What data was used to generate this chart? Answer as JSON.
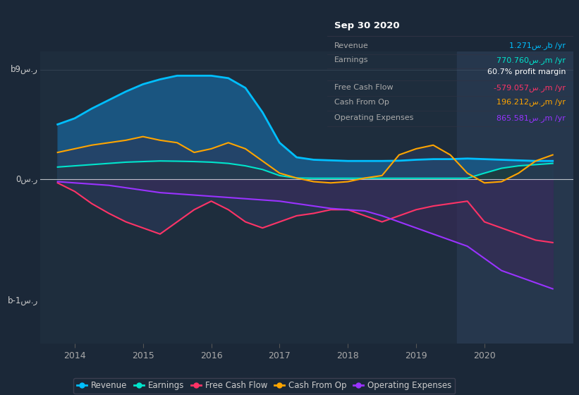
{
  "bg_color": "#1b2838",
  "plot_bg_color": "#1e2d3d",
  "highlight_bg": "#26374d",
  "ytick_labels": [
    "b9س.ر",
    "0س.ر",
    "b-1س.ر"
  ],
  "ytick_vals": [
    900000000.0,
    0,
    -1000000000.0
  ],
  "ylim": [
    -1350000000.0,
    1050000000.0
  ],
  "xlim": [
    2013.5,
    2021.3
  ],
  "xtick_vals": [
    2014,
    2015,
    2016,
    2017,
    2018,
    2019,
    2020
  ],
  "legend_labels": [
    "Revenue",
    "Earnings",
    "Free Cash Flow",
    "Cash From Op",
    "Operating Expenses"
  ],
  "revenue_color": "#00bfff",
  "earnings_color": "#00e5cc",
  "fcf_color": "#ff3366",
  "cashfromop_color": "#ffa500",
  "opex_color": "#9933ff",
  "revenue_fill_color": "#1a5580",
  "earnings_fill_color": "#1a4040",
  "x": [
    2013.75,
    2014.0,
    2014.25,
    2014.5,
    2014.75,
    2015.0,
    2015.25,
    2015.5,
    2015.75,
    2016.0,
    2016.25,
    2016.5,
    2016.75,
    2017.0,
    2017.25,
    2017.5,
    2017.75,
    2018.0,
    2018.25,
    2018.5,
    2018.75,
    2019.0,
    2019.25,
    2019.5,
    2019.75,
    2020.0,
    2020.25,
    2020.5,
    2020.75,
    2021.0
  ],
  "revenue": [
    450000000.0,
    500000000.0,
    580000000.0,
    650000000.0,
    720000000.0,
    780000000.0,
    820000000.0,
    850000000.0,
    850000000.0,
    850000000.0,
    830000000.0,
    750000000.0,
    550000000.0,
    300000000.0,
    180000000.0,
    160000000.0,
    155000000.0,
    150000000.0,
    150000000.0,
    150000000.0,
    152000000.0,
    160000000.0,
    165000000.0,
    165000000.0,
    170000000.0,
    165000000.0,
    160000000.0,
    155000000.0,
    150000000.0,
    150000000.0
  ],
  "earnings": [
    100000000.0,
    110000000.0,
    120000000.0,
    130000000.0,
    140000000.0,
    145000000.0,
    150000000.0,
    148000000.0,
    145000000.0,
    140000000.0,
    130000000.0,
    110000000.0,
    80000000.0,
    30000000.0,
    10000000.0,
    8000000.0,
    8000000.0,
    8000000.0,
    8000000.0,
    8000000.0,
    8000000.0,
    8000000.0,
    8000000.0,
    8000000.0,
    8000000.0,
    50000000.0,
    90000000.0,
    110000000.0,
    120000000.0,
    130000000.0
  ],
  "fcf": [
    -30000000.0,
    -100000000.0,
    -200000000.0,
    -280000000.0,
    -350000000.0,
    -400000000.0,
    -450000000.0,
    -350000000.0,
    -250000000.0,
    -180000000.0,
    -250000000.0,
    -350000000.0,
    -400000000.0,
    -350000000.0,
    -300000000.0,
    -280000000.0,
    -250000000.0,
    -250000000.0,
    -300000000.0,
    -350000000.0,
    -300000000.0,
    -250000000.0,
    -220000000.0,
    -200000000.0,
    -180000000.0,
    -350000000.0,
    -400000000.0,
    -450000000.0,
    -500000000.0,
    -520000000.0
  ],
  "cashfromop": [
    220000000.0,
    250000000.0,
    280000000.0,
    300000000.0,
    320000000.0,
    350000000.0,
    320000000.0,
    300000000.0,
    220000000.0,
    250000000.0,
    300000000.0,
    250000000.0,
    150000000.0,
    50000000.0,
    10000000.0,
    -20000000.0,
    -30000000.0,
    -20000000.0,
    10000000.0,
    30000000.0,
    200000000.0,
    250000000.0,
    280000000.0,
    200000000.0,
    50000000.0,
    -30000000.0,
    -20000000.0,
    50000000.0,
    150000000.0,
    200000000.0
  ],
  "opex": [
    -20000000.0,
    -30000000.0,
    -40000000.0,
    -50000000.0,
    -70000000.0,
    -90000000.0,
    -110000000.0,
    -120000000.0,
    -130000000.0,
    -140000000.0,
    -150000000.0,
    -160000000.0,
    -170000000.0,
    -180000000.0,
    -200000000.0,
    -220000000.0,
    -240000000.0,
    -250000000.0,
    -260000000.0,
    -300000000.0,
    -350000000.0,
    -400000000.0,
    -450000000.0,
    -500000000.0,
    -550000000.0,
    -650000000.0,
    -750000000.0,
    -800000000.0,
    -850000000.0,
    -900000000.0
  ],
  "info_box_title": "Sep 30 2020",
  "info_rows": [
    {
      "label": "Revenue",
      "value": "1.271س.رb /yr",
      "color": "#00bfff"
    },
    {
      "label": "Earnings",
      "value": "770.760س.رm /yr",
      "color": "#00e5cc"
    },
    {
      "label": "",
      "value": "60.7% profit margin",
      "color": "#ffffff"
    },
    {
      "label": "Free Cash Flow",
      "value": "-579.057س.رm /yr",
      "color": "#ff3366"
    },
    {
      "label": "Cash From Op",
      "value": "196.212س.رm /yr",
      "color": "#ffa500"
    },
    {
      "label": "Operating Expenses",
      "value": "865.581س.رm /yr",
      "color": "#9933ff"
    }
  ]
}
